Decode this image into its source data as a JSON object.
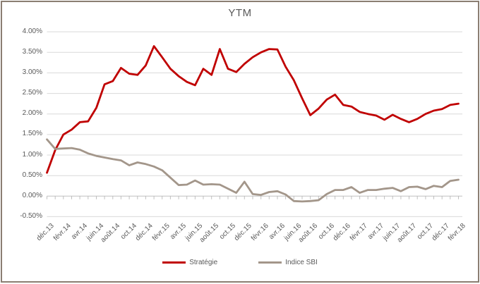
{
  "title": "YTM",
  "legend": [
    {
      "label": "Stratégie",
      "color": "#c00000"
    },
    {
      "label": "Indice SBI",
      "color": "#a3968a"
    }
  ],
  "colors": {
    "strategy_line": "#c00000",
    "index_line": "#a3968a",
    "gridline": "#d9d9d9",
    "axis_line": "#bfbfbf",
    "text": "#595959",
    "frame_border": "#8b7e72"
  },
  "chart_data": {
    "type": "line",
    "title": "YTM",
    "categories": [
      "déc.13",
      "janv.14",
      "févr.14",
      "mars.14",
      "avr.14",
      "mai.14",
      "juin.14",
      "juil.14",
      "août.14",
      "sept.14",
      "oct.14",
      "nov.14",
      "déc.14",
      "janv.15",
      "févr.15",
      "mars.15",
      "avr.15",
      "mai.15",
      "juin.15",
      "juil.15",
      "août.15",
      "sept.15",
      "oct.15",
      "nov.15",
      "déc.15",
      "janv.16",
      "févr.16",
      "mars.16",
      "avr.16",
      "mai.16",
      "juin.16",
      "juil.16",
      "août.16",
      "sept.16",
      "oct.16",
      "nov.16",
      "déc.16",
      "janv.17",
      "févr.17",
      "mars.17",
      "avr.17",
      "mai.17",
      "juin.17",
      "juil.17",
      "août.17",
      "sept.17",
      "oct.17",
      "nov.17",
      "déc.17",
      "janv.18",
      "févr.18"
    ],
    "x_tick_labels": [
      "déc.13",
      "févr.14",
      "avr.14",
      "juin.14",
      "août.14",
      "oct.14",
      "déc.14",
      "févr.15",
      "avr.15",
      "juin.15",
      "août.15",
      "oct.15",
      "déc.15",
      "févr.16",
      "avr.16",
      "juin.16",
      "août.16",
      "oct.16",
      "déc.16",
      "févr.17",
      "avr.17",
      "juin.17",
      "août.17",
      "oct.17",
      "déc.17",
      "févr.18"
    ],
    "series": [
      {
        "name": "Stratégie",
        "color": "#c00000",
        "values": [
          0.57,
          1.12,
          1.5,
          1.62,
          1.8,
          1.82,
          2.15,
          2.72,
          2.8,
          3.12,
          2.98,
          2.95,
          3.18,
          3.65,
          3.38,
          3.1,
          2.92,
          2.78,
          2.7,
          3.1,
          2.95,
          3.58,
          3.1,
          3.02,
          3.22,
          3.38,
          3.5,
          3.58,
          3.57,
          3.15,
          2.82,
          2.38,
          1.97,
          2.13,
          2.35,
          2.47,
          2.22,
          2.18,
          2.05,
          2.0,
          1.96,
          1.86,
          1.98,
          1.88,
          1.8,
          1.88,
          2.0,
          2.08,
          2.12,
          2.22,
          2.25
        ]
      },
      {
        "name": "Indice SBI",
        "color": "#a3968a",
        "values": [
          1.38,
          1.15,
          1.16,
          1.17,
          1.13,
          1.04,
          0.98,
          0.94,
          0.9,
          0.87,
          0.75,
          0.82,
          0.78,
          0.72,
          0.63,
          0.45,
          0.27,
          0.28,
          0.38,
          0.28,
          0.29,
          0.28,
          0.18,
          0.08,
          0.35,
          0.05,
          0.03,
          0.1,
          0.12,
          0.04,
          -0.12,
          -0.13,
          -0.12,
          -0.1,
          0.05,
          0.15,
          0.15,
          0.22,
          0.08,
          0.15,
          0.15,
          0.18,
          0.2,
          0.12,
          0.22,
          0.23,
          0.17,
          0.25,
          0.22,
          0.37,
          0.4
        ]
      }
    ],
    "ylim": [
      -0.5,
      4.0
    ],
    "ytick_step": 0.5,
    "ytick_labels": [
      "4.00%",
      "3.50%",
      "3.00%",
      "2.50%",
      "2.00%",
      "1.50%",
      "1.00%",
      "0.50%",
      "0.00%",
      "-0.50%"
    ],
    "grid": true,
    "legend_position": "bottom",
    "units": "percent"
  }
}
